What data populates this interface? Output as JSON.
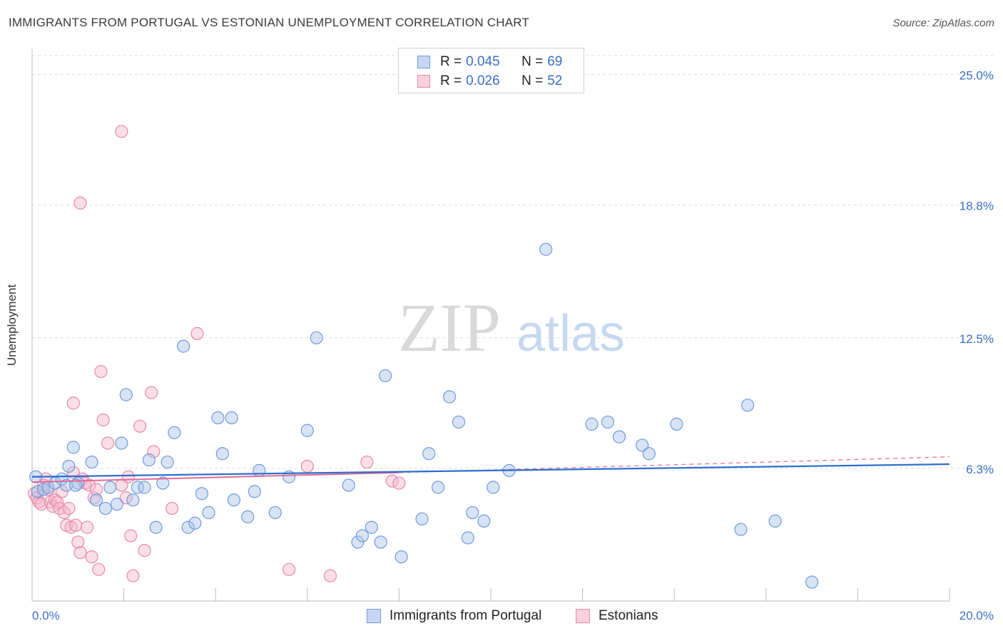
{
  "header": {
    "title": "IMMIGRANTS FROM PORTUGAL VS ESTONIAN UNEMPLOYMENT CORRELATION CHART",
    "source": "Source: ZipAtlas.com"
  },
  "watermark": {
    "zip": "ZIP",
    "atlas": "atlas"
  },
  "legend": {
    "rows": [
      {
        "r_label": "R =",
        "r_value": "0.045",
        "n_label": "N =",
        "n_value": "69"
      },
      {
        "r_label": "R =",
        "r_value": "0.026",
        "n_label": "N =",
        "n_value": "52"
      }
    ]
  },
  "bottom_legend": {
    "series1": "Immigrants from Portugal",
    "series2": "Estonians"
  },
  "colors": {
    "blue_fill": "#a9c4ec",
    "blue_stroke": "#6f9ad8",
    "blue_line": "#2f6fcf",
    "pink_fill": "#f5b7cb",
    "pink_stroke": "#e98aa9",
    "pink_line": "#e36a95",
    "axis_label": "#3b6fc4",
    "grid": "#dddddd"
  },
  "chart_data": {
    "type": "scatter",
    "title": "IMMIGRANTS FROM PORTUGAL VS ESTONIAN UNEMPLOYMENT CORRELATION CHART",
    "xlabel": "",
    "ylabel": "Unemployment",
    "xlim": [
      0,
      20
    ],
    "ylim": [
      0,
      25.9
    ],
    "x_tick_labels": [
      "0.0%",
      "20.0%"
    ],
    "y_ticks": [
      6.3,
      12.5,
      18.8,
      25.0
    ],
    "y_tick_labels": [
      "6.3%",
      "12.5%",
      "18.8%",
      "25.0%"
    ],
    "series": [
      {
        "name": "Immigrants from Portugal",
        "r": 0.045,
        "n": 69,
        "trend": {
          "x": [
            0,
            20
          ],
          "y": [
            5.9,
            6.5
          ]
        },
        "points": [
          [
            0.08,
            5.9
          ],
          [
            0.12,
            5.2
          ],
          [
            0.25,
            5.3
          ],
          [
            0.35,
            5.4
          ],
          [
            0.5,
            5.6
          ],
          [
            0.65,
            5.8
          ],
          [
            0.75,
            5.5
          ],
          [
            1.0,
            5.6
          ],
          [
            0.95,
            5.5
          ],
          [
            0.8,
            6.4
          ],
          [
            0.9,
            7.3
          ],
          [
            1.3,
            6.6
          ],
          [
            1.4,
            4.8
          ],
          [
            1.6,
            4.4
          ],
          [
            1.7,
            5.4
          ],
          [
            1.85,
            4.6
          ],
          [
            1.95,
            7.5
          ],
          [
            2.05,
            9.8
          ],
          [
            2.2,
            4.8
          ],
          [
            2.3,
            5.4
          ],
          [
            2.45,
            5.4
          ],
          [
            2.55,
            6.7
          ],
          [
            2.7,
            3.5
          ],
          [
            2.85,
            5.6
          ],
          [
            2.95,
            6.6
          ],
          [
            3.1,
            8.0
          ],
          [
            3.3,
            12.1
          ],
          [
            3.4,
            3.5
          ],
          [
            3.55,
            3.7
          ],
          [
            3.7,
            5.1
          ],
          [
            3.85,
            4.2
          ],
          [
            4.05,
            8.7
          ],
          [
            4.15,
            7.0
          ],
          [
            4.35,
            8.7
          ],
          [
            4.4,
            4.8
          ],
          [
            4.7,
            4.0
          ],
          [
            4.85,
            5.2
          ],
          [
            4.95,
            6.2
          ],
          [
            5.3,
            4.2
          ],
          [
            5.6,
            5.9
          ],
          [
            6.0,
            8.1
          ],
          [
            6.2,
            12.5
          ],
          [
            6.9,
            5.5
          ],
          [
            7.1,
            2.8
          ],
          [
            7.2,
            3.1
          ],
          [
            7.4,
            3.5
          ],
          [
            7.6,
            2.8
          ],
          [
            7.7,
            10.7
          ],
          [
            8.05,
            2.1
          ],
          [
            8.5,
            3.9
          ],
          [
            8.65,
            7.0
          ],
          [
            8.85,
            5.4
          ],
          [
            9.1,
            9.7
          ],
          [
            9.3,
            8.5
          ],
          [
            9.5,
            3.0
          ],
          [
            9.6,
            4.2
          ],
          [
            9.85,
            3.8
          ],
          [
            10.05,
            5.4
          ],
          [
            10.4,
            6.2
          ],
          [
            11.2,
            16.7
          ],
          [
            12.2,
            8.4
          ],
          [
            12.55,
            8.5
          ],
          [
            12.8,
            7.8
          ],
          [
            13.3,
            7.4
          ],
          [
            13.45,
            7.0
          ],
          [
            14.05,
            8.4
          ],
          [
            15.45,
            3.4
          ],
          [
            15.6,
            9.3
          ],
          [
            16.2,
            3.8
          ],
          [
            17.0,
            0.9
          ]
        ]
      },
      {
        "name": "Estonians",
        "r": 0.026,
        "n": 52,
        "trend": {
          "x": [
            0,
            8
          ],
          "y": [
            5.65,
            6.1
          ]
        },
        "trend_dashed": {
          "x": [
            8,
            20
          ],
          "y": [
            6.1,
            6.85
          ]
        },
        "points": [
          [
            0.05,
            5.1
          ],
          [
            0.1,
            4.9
          ],
          [
            0.15,
            4.7
          ],
          [
            0.2,
            4.6
          ],
          [
            0.3,
            5.8
          ],
          [
            0.35,
            5.3
          ],
          [
            0.4,
            4.7
          ],
          [
            0.45,
            4.5
          ],
          [
            0.5,
            4.8
          ],
          [
            0.55,
            4.7
          ],
          [
            0.6,
            4.4
          ],
          [
            0.65,
            5.2
          ],
          [
            0.7,
            4.2
          ],
          [
            0.75,
            3.6
          ],
          [
            0.8,
            4.4
          ],
          [
            0.85,
            3.5
          ],
          [
            0.9,
            6.1
          ],
          [
            0.95,
            3.6
          ],
          [
            1.0,
            2.8
          ],
          [
            1.05,
            2.3
          ],
          [
            1.1,
            5.8
          ],
          [
            1.15,
            5.6
          ],
          [
            1.2,
            3.5
          ],
          [
            1.25,
            5.5
          ],
          [
            1.3,
            2.1
          ],
          [
            1.35,
            4.9
          ],
          [
            1.4,
            5.3
          ],
          [
            1.45,
            1.5
          ],
          [
            1.5,
            10.9
          ],
          [
            1.55,
            8.6
          ],
          [
            1.65,
            7.5
          ],
          [
            0.9,
            9.4
          ],
          [
            1.05,
            18.9
          ],
          [
            1.95,
            22.3
          ],
          [
            1.95,
            5.5
          ],
          [
            2.05,
            4.9
          ],
          [
            2.1,
            5.9
          ],
          [
            2.15,
            3.1
          ],
          [
            2.2,
            1.2
          ],
          [
            2.35,
            8.3
          ],
          [
            2.45,
            2.4
          ],
          [
            2.6,
            9.9
          ],
          [
            2.65,
            7.1
          ],
          [
            3.05,
            4.4
          ],
          [
            3.6,
            12.7
          ],
          [
            5.6,
            1.5
          ],
          [
            6.0,
            6.4
          ],
          [
            6.5,
            1.2
          ],
          [
            7.3,
            6.6
          ],
          [
            7.85,
            5.7
          ],
          [
            8.0,
            5.6
          ],
          [
            0.25,
            5.5
          ]
        ]
      }
    ]
  }
}
